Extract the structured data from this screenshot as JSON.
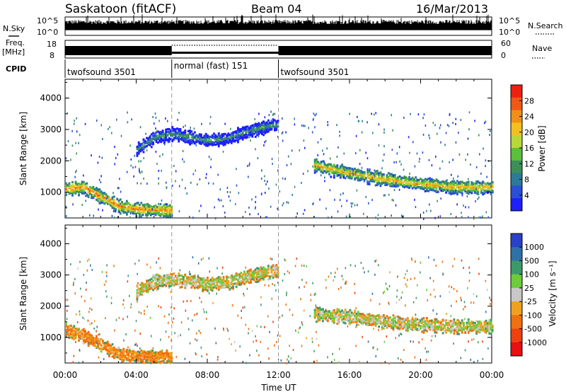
{
  "header": {
    "title_left": "Saskatoon (fitACF)",
    "title_center": "Beam 04",
    "title_right": "16/Mar/2013"
  },
  "top_panels": {
    "nsky_label": "N.Sky",
    "nsky_ticks": [
      "10^5",
      "10^0"
    ],
    "nsearch_label": "N.Search",
    "freq_label": "Freq.",
    "freq_unit": "[MHz]",
    "freq_ticks": [
      "18",
      "8"
    ],
    "nave_label": "Nave",
    "nave_ticks": [
      "60",
      "0"
    ],
    "cpid_label": "CPID",
    "cpid_segments": [
      {
        "label": "twofsound 3501",
        "start": 0,
        "end": 6
      },
      {
        "label": "normal (fast) 151",
        "start": 6,
        "end": 12
      },
      {
        "label": "twofsound 3501",
        "start": 12,
        "end": 24
      }
    ]
  },
  "chart_data": [
    {
      "type": "heatmap",
      "title": "",
      "xlabel": "",
      "ylabel": "Slant Range [km]",
      "xlim": [
        0,
        24
      ],
      "ylim": [
        180,
        4600
      ],
      "yticks": [
        1000,
        2000,
        3000,
        4000
      ],
      "colorbar": {
        "label": "Power [dB]",
        "ticks": [
          4,
          8,
          12,
          16,
          20,
          24,
          28
        ],
        "colors": [
          "#1f1fff",
          "#2a4fd6",
          "#2b7a9a",
          "#3c8f5a",
          "#5cbf3a",
          "#b8d83a",
          "#f4c020",
          "#f09018",
          "#ee5a14",
          "#ee2010"
        ]
      },
      "echo_bands": [
        {
          "t": [
            0,
            1,
            2,
            3,
            4,
            5,
            6
          ],
          "range": [
            1150,
            1200,
            900,
            600,
            500,
            480,
            460
          ],
          "value": 26
        },
        {
          "t": [
            4,
            5,
            6,
            7,
            8,
            9,
            10,
            11,
            12
          ],
          "range": [
            2400,
            2800,
            2900,
            2800,
            2700,
            2750,
            2950,
            3100,
            3200
          ],
          "value": 14
        },
        {
          "t": [
            14,
            16,
            18,
            20,
            22,
            24
          ],
          "range": [
            1900,
            1650,
            1450,
            1300,
            1200,
            1200
          ],
          "value": 24
        }
      ]
    },
    {
      "type": "heatmap",
      "title": "",
      "xlabel": "Time UT",
      "ylabel": "Slant Range [km]",
      "xlim": [
        0,
        24
      ],
      "ylim": [
        180,
        4600
      ],
      "yticks": [
        1000,
        2000,
        3000,
        4000
      ],
      "xticks": [
        "00:00",
        "04:00",
        "08:00",
        "12:00",
        "16:00",
        "20:00",
        "00:00"
      ],
      "colorbar": {
        "label": "Velocity [m s⁻¹]",
        "ticks": [
          1000,
          500,
          100,
          25,
          -25,
          -100,
          -500,
          -1000
        ],
        "colors": [
          "#2a40c8",
          "#2f70a8",
          "#3c9a6a",
          "#6ccc3a",
          "#c8c8c8",
          "#f0a020",
          "#f07010",
          "#f04010",
          "#e81010"
        ]
      },
      "echo_bands": [
        {
          "t": [
            0,
            1,
            2,
            3,
            4,
            5,
            6
          ],
          "range": [
            1300,
            1100,
            800,
            500,
            450,
            420,
            400
          ],
          "value": -100
        },
        {
          "t": [
            4,
            5,
            6,
            7,
            8,
            9,
            10,
            11,
            12
          ],
          "range": [
            2500,
            2850,
            2900,
            2850,
            2750,
            2800,
            2950,
            3100,
            3200
          ],
          "value": 0
        },
        {
          "t": [
            14,
            16,
            18,
            20,
            22,
            24
          ],
          "range": [
            1800,
            1700,
            1550,
            1450,
            1400,
            1400
          ],
          "value": 0
        }
      ]
    }
  ]
}
